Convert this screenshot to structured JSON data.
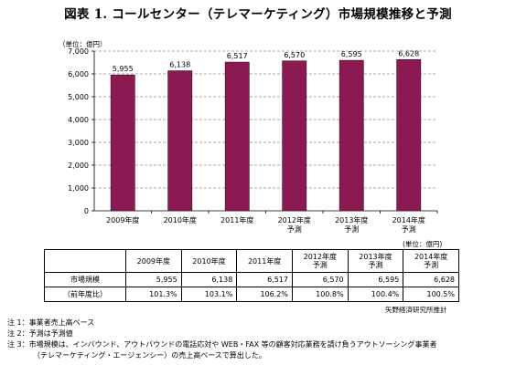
{
  "title": "図表 1. コールセンター（テレマーケティング）市場規模推移と予測",
  "chart_data": {
    "type": "bar",
    "unit_label": "（単位：億円）",
    "categories": [
      [
        "2009年度"
      ],
      [
        "2010年度"
      ],
      [
        "2011年度"
      ],
      [
        "2012年度",
        "予測"
      ],
      [
        "2013年度",
        "予測"
      ],
      [
        "2014年度",
        "予測"
      ]
    ],
    "values": [
      5955,
      6138,
      6517,
      6570,
      6595,
      6628
    ],
    "data_labels": [
      "5,955",
      "6,138",
      "6,517",
      "6,570",
      "6,595",
      "6,628"
    ],
    "ylim": [
      0,
      7000
    ],
    "yticks": [
      0,
      1000,
      2000,
      3000,
      4000,
      5000,
      6000,
      7000
    ],
    "ytick_labels": [
      "0",
      "1,000",
      "2,000",
      "3,000",
      "4,000",
      "5,000",
      "6,000",
      "7,000"
    ],
    "bar_color": "#8b1a52",
    "grid": "dashed horizontal"
  },
  "table": {
    "unit_label": "(単位：億円)",
    "headers": [
      [
        "2009年度"
      ],
      [
        "2010年度"
      ],
      [
        "2011年度"
      ],
      [
        "2012年度",
        "予測"
      ],
      [
        "2013年度",
        "予測"
      ],
      [
        "2014年度",
        "予測"
      ]
    ],
    "rows": [
      {
        "label": "市場規模",
        "values": [
          "5,955",
          "6,138",
          "6,517",
          "6,570",
          "6,595",
          "6,628"
        ]
      },
      {
        "label": "（前年度比）",
        "values": [
          "101.3%",
          "103.1%",
          "106.2%",
          "100.8%",
          "100.4%",
          "100.5%"
        ]
      }
    ]
  },
  "source": "矢野経済研究所推計",
  "notes": [
    "注 1：事業者売上高ベース",
    "注 2：予測は予測値",
    "注 3：市場規模は、インバウンド、アウトバウンドの電話応対や WEB・FAX 等の顧客対応業務を請け負うアウトソーシング事業者",
    "（テレマーケティング・エージェンシー）の売上高ベースで算出した。"
  ]
}
